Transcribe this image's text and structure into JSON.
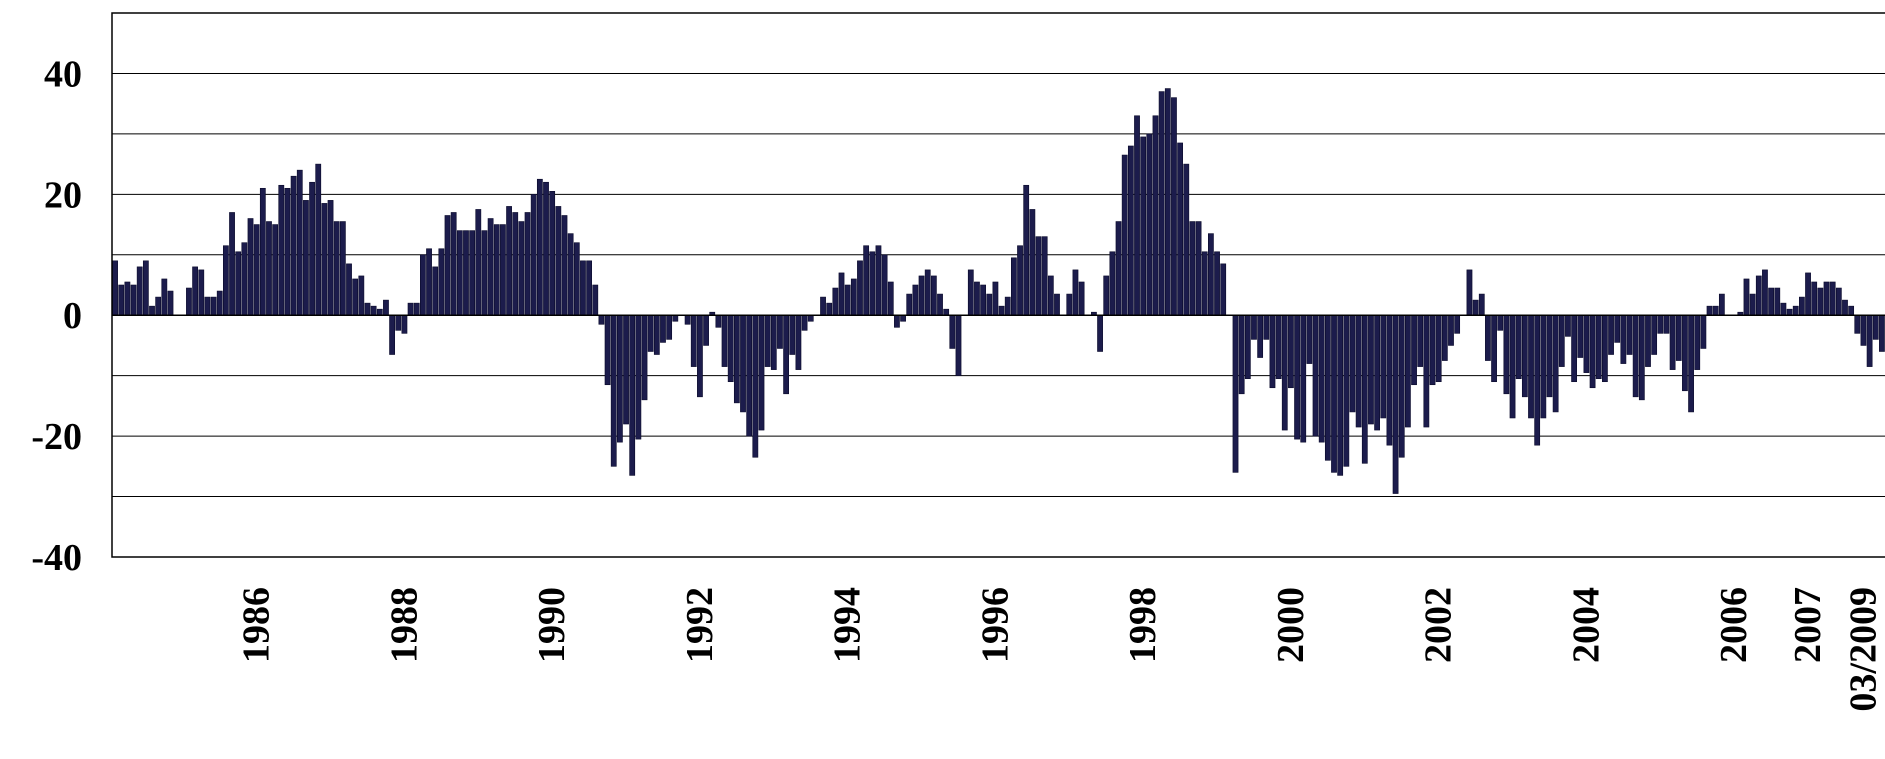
{
  "chart_data": {
    "type": "bar",
    "color": "#1c1c4c",
    "grid": true,
    "ylim": [
      -40,
      50
    ],
    "yticks": [
      -40,
      -20,
      0,
      20,
      40
    ],
    "minor_yticks": [
      -30,
      -10,
      10,
      30
    ],
    "categories": [
      null,
      null,
      null,
      null,
      null,
      null,
      null,
      null,
      null,
      null,
      null,
      null,
      null,
      null,
      null,
      null,
      null,
      null,
      null,
      null,
      null,
      null,
      null,
      "1986",
      null,
      null,
      null,
      null,
      null,
      null,
      null,
      null,
      null,
      null,
      null,
      null,
      null,
      null,
      null,
      null,
      null,
      null,
      null,
      null,
      null,
      null,
      null,
      "1988",
      null,
      null,
      null,
      null,
      null,
      null,
      null,
      null,
      null,
      null,
      null,
      null,
      null,
      null,
      null,
      null,
      null,
      null,
      null,
      null,
      null,
      null,
      null,
      "1990",
      null,
      null,
      null,
      null,
      null,
      null,
      null,
      null,
      null,
      null,
      null,
      null,
      null,
      null,
      null,
      null,
      null,
      null,
      null,
      null,
      null,
      null,
      null,
      "1992",
      null,
      null,
      null,
      null,
      null,
      null,
      null,
      null,
      null,
      null,
      null,
      null,
      null,
      null,
      null,
      null,
      null,
      null,
      null,
      null,
      null,
      null,
      null,
      "1994",
      null,
      null,
      null,
      null,
      null,
      null,
      null,
      null,
      null,
      null,
      null,
      null,
      null,
      null,
      null,
      null,
      null,
      null,
      null,
      null,
      null,
      null,
      null,
      "1996",
      null,
      null,
      null,
      null,
      null,
      null,
      null,
      null,
      null,
      null,
      null,
      null,
      null,
      null,
      null,
      null,
      null,
      null,
      null,
      null,
      null,
      null,
      null,
      "1998",
      null,
      null,
      null,
      null,
      null,
      null,
      null,
      null,
      null,
      null,
      null,
      null,
      null,
      null,
      null,
      null,
      null,
      null,
      null,
      null,
      null,
      null,
      null,
      "2000",
      null,
      null,
      null,
      null,
      null,
      null,
      null,
      null,
      null,
      null,
      null,
      null,
      null,
      null,
      null,
      null,
      null,
      null,
      null,
      null,
      null,
      null,
      null,
      "2002",
      null,
      null,
      null,
      null,
      null,
      null,
      null,
      null,
      null,
      null,
      null,
      null,
      null,
      null,
      null,
      null,
      null,
      null,
      null,
      null,
      null,
      null,
      null,
      "2004",
      null,
      null,
      null,
      null,
      null,
      null,
      null,
      null,
      null,
      null,
      null,
      null,
      null,
      null,
      null,
      null,
      null,
      null,
      null,
      null,
      null,
      null,
      null,
      "2006",
      null,
      null,
      null,
      null,
      null,
      null,
      null,
      null,
      null,
      null,
      null,
      "2007",
      null,
      null,
      null,
      null,
      null,
      null,
      null,
      null,
      "03/2009",
      null,
      null,
      null
    ],
    "values": [
      9,
      5,
      5.5,
      5,
      8,
      9,
      1.5,
      3,
      6,
      4,
      0,
      0,
      4.5,
      8,
      7.5,
      3,
      3,
      4,
      11.5,
      17,
      10.5,
      12,
      16,
      15,
      21,
      15.5,
      15,
      21.5,
      21,
      23,
      24,
      19,
      22,
      25,
      18.5,
      19,
      15.5,
      15.5,
      8.5,
      6,
      6.5,
      2,
      1.5,
      1,
      2.5,
      -6.5,
      -2.5,
      -3,
      2,
      2,
      10,
      11,
      8,
      11,
      16.5,
      17,
      14,
      14,
      14,
      17.5,
      14,
      16,
      15,
      15,
      18,
      17,
      15.5,
      17,
      20,
      22.5,
      22,
      20.5,
      18,
      16.5,
      13.5,
      12,
      9,
      9,
      5,
      -1.5,
      -11.5,
      -25,
      -21,
      -18,
      -26.5,
      -20.5,
      -14,
      -6,
      -6.5,
      -4.5,
      -4,
      -1,
      0,
      -1.5,
      -8.5,
      -13.5,
      -5,
      0.5,
      -2,
      -8.5,
      -11,
      -14.5,
      -16,
      -20,
      -23.5,
      -19,
      -8.5,
      -9,
      -5.5,
      -13,
      -6.5,
      -9,
      -2.5,
      -1,
      0,
      3,
      2,
      4.5,
      7,
      5,
      6,
      9,
      11.5,
      10.5,
      11.5,
      10,
      5.5,
      -2,
      -1,
      3.5,
      5,
      6.5,
      7.5,
      6.5,
      3.5,
      1,
      -5.5,
      -10,
      0,
      7.5,
      5.5,
      5,
      3.5,
      5.5,
      1.5,
      3,
      9.5,
      11.5,
      21.5,
      17.5,
      13,
      13,
      6.5,
      3.5,
      0,
      3.5,
      7.5,
      5.5,
      0,
      0.5,
      -6,
      6.5,
      10.5,
      15.5,
      26.5,
      28,
      33,
      29.5,
      30,
      33,
      37,
      37.5,
      36,
      28.5,
      25,
      15.5,
      15.5,
      10.5,
      13.5,
      10.5,
      8.5,
      0,
      -26,
      -13,
      -10.5,
      -4,
      -7,
      -4,
      -12,
      -10.5,
      -19,
      -12,
      -20.5,
      -21,
      -8,
      -20,
      -21,
      -24,
      -26,
      -26.5,
      -25,
      -16,
      -18.5,
      -24.5,
      -18,
      -19,
      -17,
      -21.5,
      -29.5,
      -23.5,
      -18.5,
      -11.5,
      -8.5,
      -18.5,
      -11.5,
      -11,
      -7.5,
      -5,
      -3,
      0,
      7.5,
      2.5,
      3.5,
      -7.5,
      -11,
      -2.5,
      -13,
      -17,
      -10.5,
      -13.5,
      -17,
      -21.5,
      -17,
      -13.5,
      -16,
      -8.5,
      -3.5,
      -11,
      -7,
      -9.5,
      -12,
      -10.5,
      -11,
      -6.5,
      -4.5,
      -8,
      -6.5,
      -13.5,
      -14,
      -8.5,
      -6.5,
      -3,
      -3,
      -9,
      -7.5,
      -12.5,
      -16,
      -9,
      -5.5,
      1.5,
      1.5,
      3.5,
      0,
      0,
      0.5,
      6,
      3.5,
      6.5,
      7.5,
      4.5,
      4.5,
      2,
      1,
      1.5,
      3,
      7,
      5.5,
      4.5,
      5.5,
      5.5,
      4.5,
      2.5,
      1.5,
      -3,
      -5,
      -8.5,
      -4,
      -6
    ]
  }
}
